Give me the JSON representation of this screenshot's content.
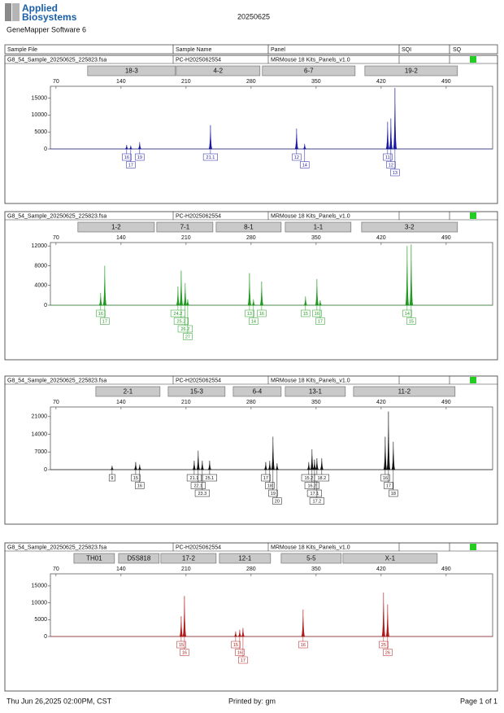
{
  "header": {
    "brand_lines": [
      "Applied",
      "Biosystems"
    ],
    "software": "GeneMapper Software 6",
    "date": "20250625",
    "columns": [
      "Sample File",
      "Sample Name",
      "Panel",
      "SQI",
      "SQ"
    ]
  },
  "chart_data": [
    {
      "type": "peaks",
      "sample_file": "G8_54_Sample_20250625_225823.fsa",
      "sample_name": "PC-H2025062554",
      "panel": "MRMouse 18 Kits_Panels_v1.0",
      "color": "#1a1aa0",
      "markers": [
        {
          "name": "18-3",
          "start": 104.1,
          "end": 198.6
        },
        {
          "name": "4-2",
          "start": 199.5,
          "end": 289.6
        },
        {
          "name": "6-7",
          "start": 292.2,
          "end": 392
        },
        {
          "name": "19-2",
          "start": 402.5,
          "end": 502.2
        }
      ],
      "x": [
        146.1,
        150.5,
        160.1,
        236.3,
        329,
        337.7,
        427,
        430.5,
        434.9
      ],
      "values": [
        1200,
        1000,
        2000,
        7000,
        6000,
        1500,
        8000,
        9000,
        18000
      ],
      "peak_labels": [
        "16",
        "17",
        "19",
        "21.1",
        "12",
        "14",
        "11",
        "12",
        "13"
      ],
      "xlim": [
        64,
        540
      ],
      "xticks": [
        70,
        140,
        210,
        280,
        350,
        420,
        490
      ],
      "ylim": [
        0,
        18500
      ],
      "yticks": [
        0,
        5000,
        10000,
        15000
      ]
    },
    {
      "type": "peaks",
      "sample_file": "G8_54_Sample_20250625_225823.fsa",
      "sample_name": "PC-H2025062554",
      "panel": "MRMouse 18 Kits_Panels_v1.0",
      "color": "#1f9a1f",
      "markers": [
        {
          "name": "1-2",
          "start": 93.6,
          "end": 175.9
        },
        {
          "name": "7-1",
          "start": 178.5,
          "end": 238.9
        },
        {
          "name": "8-1",
          "start": 242.4,
          "end": 312.4
        },
        {
          "name": "1-1",
          "start": 316.8,
          "end": 387.6
        },
        {
          "name": "3-2",
          "start": 399,
          "end": 502.2
        }
      ],
      "x": [
        118.1,
        122.5,
        201.3,
        204.8,
        209.1,
        211.8,
        278.3,
        282.6,
        291.4,
        338.6,
        350.9,
        354.4,
        448,
        452.4
      ],
      "values": [
        2500,
        8000,
        3800,
        7000,
        4500,
        1200,
        6500,
        1200,
        4800,
        1800,
        5300,
        1000,
        12000,
        12300
      ],
      "peak_labels": [
        "16",
        "17",
        "24.2",
        "25.2",
        "26.2",
        "27",
        "13",
        "14",
        "16",
        "15",
        "16",
        "17",
        "14",
        "15"
      ],
      "xlim": [
        64,
        540
      ],
      "xticks": [
        70,
        140,
        210,
        280,
        350,
        420,
        490
      ],
      "ylim": [
        0,
        12700
      ],
      "yticks": [
        0,
        4000,
        8000,
        12000
      ]
    },
    {
      "type": "peaks",
      "sample_file": "G8_54_Sample_20250625_225823.fsa",
      "sample_name": "PC-H2025062554",
      "panel": "MRMouse 18 Kits_Panels_v1.0",
      "color": "#111111",
      "markers": [
        {
          "name": "2-1",
          "start": 112.9,
          "end": 182
        },
        {
          "name": "15-3",
          "start": 190.8,
          "end": 252
        },
        {
          "name": "6-4",
          "start": 260.8,
          "end": 312.4
        },
        {
          "name": "13-1",
          "start": 316.8,
          "end": 381.5
        },
        {
          "name": "11-2",
          "start": 390.3,
          "end": 499.6
        }
      ],
      "x": [
        130.4,
        155.8,
        160.1,
        218.8,
        223.1,
        227.5,
        235.4,
        295.8,
        300.1,
        303.6,
        308,
        342.1,
        345.6,
        348.3,
        350.9,
        356.1,
        424.4,
        427.9,
        433.1
      ],
      "values": [
        1500,
        3000,
        2000,
        3500,
        7500,
        3500,
        3500,
        3000,
        3500,
        13000,
        2500,
        3000,
        8000,
        4000,
        4500,
        4500,
        13000,
        23000,
        11000
      ],
      "peak_labels": [
        "9",
        "15",
        "16",
        "21.1",
        "22.1",
        "23.3",
        "25.1",
        "17",
        "18",
        "19",
        "20",
        "15.2",
        "16.2",
        "17.1",
        "17.2",
        "18.2",
        "16",
        "17",
        "18"
      ],
      "xlim": [
        64,
        540
      ],
      "xticks": [
        70,
        140,
        210,
        280,
        350,
        420,
        490
      ],
      "ylim": [
        0,
        24800
      ],
      "yticks": [
        0,
        7000,
        14000,
        21000
      ]
    },
    {
      "type": "peaks",
      "sample_file": "G8_54_Sample_20250625_225823.fsa",
      "sample_name": "PC-H2025062554",
      "panel": "MRMouse 18 Kits_Panels_v1.0",
      "color": "#b01a1a",
      "markers": [
        {
          "name": "TH01",
          "start": 89.3,
          "end": 133
        },
        {
          "name": "D5S818",
          "start": 137.4,
          "end": 181.1
        },
        {
          "name": "17-2",
          "start": 182.9,
          "end": 242.4
        },
        {
          "name": "12-1",
          "start": 245.9,
          "end": 301
        },
        {
          "name": "5-5",
          "start": 312.4,
          "end": 377.1
        },
        {
          "name": "X-1",
          "start": 378.9,
          "end": 480.4
        }
      ],
      "x": [
        204.8,
        208.3,
        263.4,
        267.8,
        271.3,
        336,
        422.6,
        427
      ],
      "values": [
        6000,
        12000,
        1500,
        2000,
        2500,
        8000,
        13000,
        9500
      ],
      "peak_labels": [
        "15",
        "16",
        "15",
        "16",
        "17",
        "16",
        "25",
        "26"
      ],
      "xlim": [
        64,
        540
      ],
      "xticks": [
        70,
        140,
        210,
        280,
        350,
        420,
        490
      ],
      "ylim": [
        0,
        18600
      ],
      "yticks": [
        0,
        5000,
        10000,
        15000
      ]
    }
  ],
  "footer": {
    "printed_at": "Thu Jun 26,2025 02:00PM, CST",
    "printed_by": "Printed by: gm",
    "page": "Page 1 of 1"
  }
}
